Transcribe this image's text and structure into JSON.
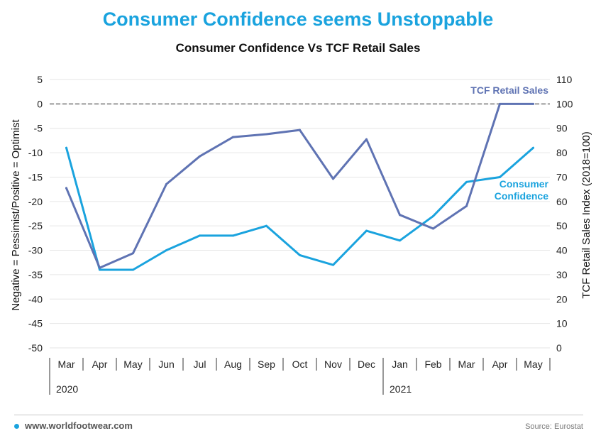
{
  "header": {
    "title": "Consumer Confidence seems Unstoppable",
    "subtitle": "Consumer Confidence Vs TCF Retail Sales"
  },
  "colors": {
    "title": "#1aa3de",
    "consumer_confidence": "#1aa3de",
    "tcf_retail_sales": "#5f73b3",
    "reference_line": "#999999",
    "grid": "#e6e6e6"
  },
  "chart_data": {
    "type": "line",
    "title": "Consumer Confidence Vs TCF Retail Sales",
    "categories": [
      "Mar",
      "Apr",
      "May",
      "Jun",
      "Jul",
      "Aug",
      "Sep",
      "Oct",
      "Nov",
      "Dec",
      "Jan",
      "Feb",
      "Mar",
      "Apr",
      "May"
    ],
    "year_groups": [
      {
        "label": "2020",
        "start_index": 0,
        "end_index": 9
      },
      {
        "label": "2021",
        "start_index": 10,
        "end_index": 14
      }
    ],
    "left_axis": {
      "label": "Negative = Pessimist/Positive = Optimist",
      "ylim": [
        -50,
        5
      ],
      "ticks": [
        5,
        0,
        -5,
        -10,
        -15,
        -20,
        -25,
        -30,
        -35,
        -40,
        -45,
        -50
      ]
    },
    "right_axis": {
      "label": "TCF Retail Sales Index (2018=100)",
      "ylim": [
        0,
        110
      ],
      "ticks": [
        110,
        100,
        90,
        80,
        70,
        60,
        50,
        40,
        30,
        20,
        10,
        0
      ]
    },
    "series": [
      {
        "name": "Consumer Confidence",
        "label_lines": [
          "Consumer",
          "Confidence"
        ],
        "axis": "left",
        "color": "#1aa3de",
        "values": [
          -9,
          -34,
          -34,
          -30,
          -27,
          -27,
          -25,
          -31,
          -33,
          -26,
          -28,
          -23,
          -16,
          -15,
          -9
        ]
      },
      {
        "name": "TCF Retail Sales",
        "label_lines": [
          "TCF Retail Sales"
        ],
        "axis": "right",
        "color": "#5f73b3",
        "values": [
          65.5,
          32.8,
          38.8,
          67.1,
          78.5,
          86.4,
          87.6,
          89.3,
          69.3,
          85.5,
          54.5,
          48.9,
          58.1,
          100,
          100
        ]
      }
    ],
    "reference_line": {
      "axis": "left",
      "value": 0,
      "style": "dashed"
    },
    "grid": true,
    "legend": "inline labels"
  },
  "footer": {
    "website": "www.worldfootwear.com",
    "source": "Source: Eurostat"
  }
}
